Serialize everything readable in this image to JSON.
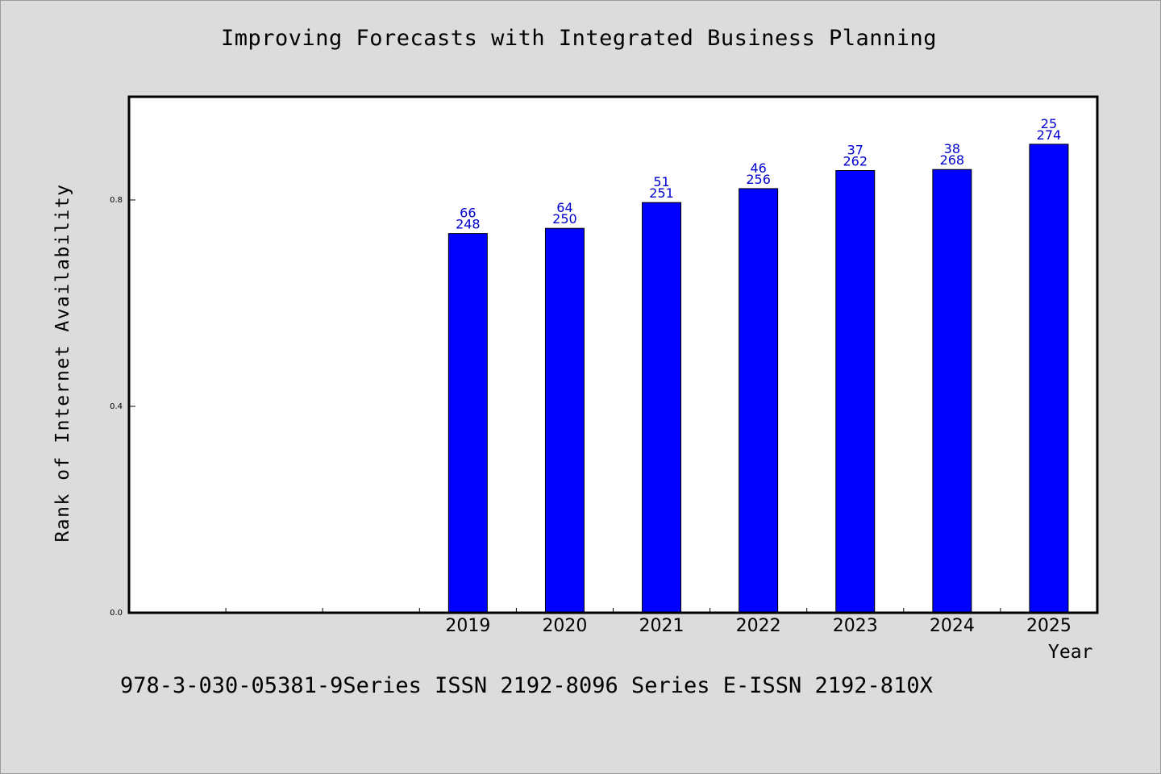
{
  "chart_data": {
    "type": "bar",
    "title": "Improving Forecasts with Integrated Business Planning",
    "xlabel": "Year",
    "ylabel": "Rank of Internet Availability",
    "categories": [
      "",
      "",
      "",
      "2019",
      "2020",
      "2021",
      "2022",
      "2023",
      "2024",
      "2025"
    ],
    "values": [
      null,
      null,
      null,
      0.735,
      0.745,
      0.795,
      0.822,
      0.857,
      0.859,
      0.908
    ],
    "data_labels": [
      null,
      null,
      null,
      [
        "66",
        "248"
      ],
      [
        "64",
        "250"
      ],
      [
        "51",
        "251"
      ],
      [
        "46",
        "256"
      ],
      [
        "37",
        "262"
      ],
      [
        "38",
        "268"
      ],
      [
        "25",
        "274"
      ]
    ],
    "yticks": [
      "0.0",
      "0.4",
      "0.8"
    ],
    "ytick_values": [
      0.0,
      0.4,
      0.8
    ],
    "ylim": [
      0,
      1.0
    ],
    "grid": false,
    "legend": "none",
    "colors": {
      "bar": "#0000ff",
      "bar_label": "#0000cc",
      "background": "#dcdcdc",
      "plot": "#ffffff"
    }
  },
  "footer": "978-3-030-05381-9Series ISSN 2192-8096 Series E-ISSN 2192-810X"
}
